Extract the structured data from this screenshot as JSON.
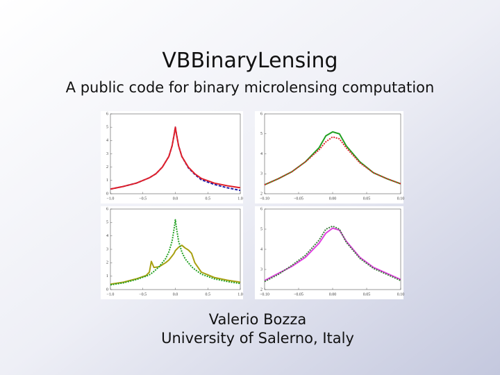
{
  "slide": {
    "title": "VBBinaryLensing",
    "subtitle": "A public code for binary microlensing computation",
    "author": "Valerio Bozza",
    "affiliation": "University of Salerno, Italy"
  },
  "chart_data": [
    {
      "type": "line",
      "x": [
        -1,
        -0.8,
        -0.6,
        -0.4,
        -0.3,
        -0.2,
        -0.1,
        -0.05,
        -0.02,
        0,
        0.02,
        0.05,
        0.1,
        0.2,
        0.3,
        0.4,
        0.6,
        0.8,
        1
      ],
      "series": [
        {
          "color": "#1c1ca8",
          "style": "dashed",
          "values": [
            0.35,
            0.55,
            0.8,
            1.2,
            1.5,
            2.0,
            2.8,
            3.6,
            4.4,
            5.0,
            4.4,
            3.6,
            2.8,
            1.95,
            1.45,
            1.05,
            0.7,
            0.45,
            0.25
          ]
        },
        {
          "color": "#e0202a",
          "style": "solid",
          "values": [
            0.35,
            0.55,
            0.8,
            1.2,
            1.5,
            2.0,
            2.8,
            3.6,
            4.4,
            5.0,
            4.4,
            3.6,
            2.8,
            2.0,
            1.5,
            1.15,
            0.8,
            0.6,
            0.45
          ]
        }
      ],
      "xlim": [
        -1,
        1
      ],
      "ylim": [
        0,
        6
      ],
      "xticks": [
        {
          "value": -1,
          "label": "−1.0"
        },
        {
          "value": -0.5,
          "label": "−0.5"
        },
        {
          "value": 0,
          "label": "0.0"
        },
        0.5,
        {
          "value": 1,
          "label": "1.0"
        }
      ],
      "yticks": [
        0,
        1,
        2,
        3,
        4,
        5,
        6
      ]
    },
    {
      "type": "line",
      "x": [
        -0.1,
        -0.08,
        -0.06,
        -0.04,
        -0.02,
        -0.01,
        0,
        0.01,
        0.02,
        0.04,
        0.06,
        0.08,
        0.1
      ],
      "series": [
        {
          "color": "#22a022",
          "style": "solid",
          "values": [
            2.45,
            2.75,
            3.1,
            3.6,
            4.3,
            4.9,
            5.1,
            5.0,
            4.4,
            3.6,
            3.05,
            2.75,
            2.5
          ]
        },
        {
          "color": "#e0202a",
          "style": "dotted",
          "values": [
            2.45,
            2.75,
            3.1,
            3.6,
            4.2,
            4.6,
            4.85,
            4.75,
            4.3,
            3.55,
            3.05,
            2.75,
            2.5
          ]
        }
      ],
      "xlim": [
        -0.1,
        0.1
      ],
      "ylim": [
        2,
        6
      ],
      "xticks": [
        {
          "value": -0.1,
          "label": "−0.10"
        },
        {
          "value": -0.05,
          "label": "−0.05"
        },
        {
          "value": 0,
          "label": "0.00"
        },
        0.05,
        {
          "value": 0.1,
          "label": "0.10"
        }
      ],
      "yticks": [
        2,
        3,
        4,
        5,
        6
      ]
    },
    {
      "type": "line",
      "x": [
        -1,
        -0.8,
        -0.6,
        -0.45,
        -0.4,
        -0.37,
        -0.33,
        -0.25,
        -0.15,
        -0.1,
        -0.05,
        -0.02,
        0,
        0.02,
        0.05,
        0.1,
        0.15,
        0.2,
        0.25,
        0.3,
        0.4,
        0.6,
        0.8,
        1
      ],
      "series": [
        {
          "color": "#a8a010",
          "style": "solid",
          "values": [
            0.4,
            0.55,
            0.8,
            1.05,
            1.3,
            2.1,
            1.65,
            1.7,
            2.0,
            2.2,
            2.5,
            2.7,
            2.9,
            3.0,
            3.15,
            3.3,
            3.1,
            2.95,
            2.7,
            2.0,
            1.3,
            0.9,
            0.7,
            0.55
          ]
        },
        {
          "color": "#22a022",
          "style": "dotted",
          "values": [
            0.35,
            0.5,
            0.75,
            1.0,
            1.1,
            1.2,
            1.35,
            1.7,
            2.3,
            2.8,
            3.6,
            4.5,
            5.2,
            4.5,
            3.6,
            2.8,
            2.3,
            2.0,
            1.7,
            1.5,
            1.15,
            0.8,
            0.6,
            0.45
          ]
        }
      ],
      "xlim": [
        -1,
        1
      ],
      "ylim": [
        0,
        6
      ],
      "xticks": [
        {
          "value": -1,
          "label": "−1.0"
        },
        {
          "value": -0.5,
          "label": "−0.5"
        },
        {
          "value": 0,
          "label": "0.0"
        },
        0.5,
        {
          "value": 1,
          "label": "1.0"
        }
      ],
      "yticks": [
        0,
        1,
        2,
        3,
        4,
        5,
        6
      ]
    },
    {
      "type": "line",
      "x": [
        -0.1,
        -0.08,
        -0.06,
        -0.04,
        -0.02,
        -0.01,
        0,
        0.01,
        0.02,
        0.04,
        0.06,
        0.08,
        0.1
      ],
      "series": [
        {
          "color": "#e040e0",
          "style": "solid",
          "values": [
            2.45,
            2.8,
            3.15,
            3.6,
            4.3,
            4.8,
            5.05,
            4.95,
            4.4,
            3.6,
            3.1,
            2.8,
            2.5
          ]
        },
        {
          "color": "#3a7a3a",
          "style": "dotted",
          "values": [
            2.4,
            2.75,
            3.2,
            3.7,
            4.45,
            5.0,
            5.15,
            5.0,
            4.35,
            3.55,
            3.05,
            2.75,
            2.45
          ]
        }
      ],
      "xlim": [
        -0.1,
        0.1
      ],
      "ylim": [
        2,
        6
      ],
      "xticks": [
        {
          "value": -0.1,
          "label": "−0.10"
        },
        {
          "value": -0.05,
          "label": "−0.05"
        },
        {
          "value": 0,
          "label": "0.00"
        },
        0.05,
        {
          "value": 0.1,
          "label": "0.10"
        }
      ],
      "yticks": [
        2,
        3,
        4,
        5,
        6
      ]
    }
  ]
}
